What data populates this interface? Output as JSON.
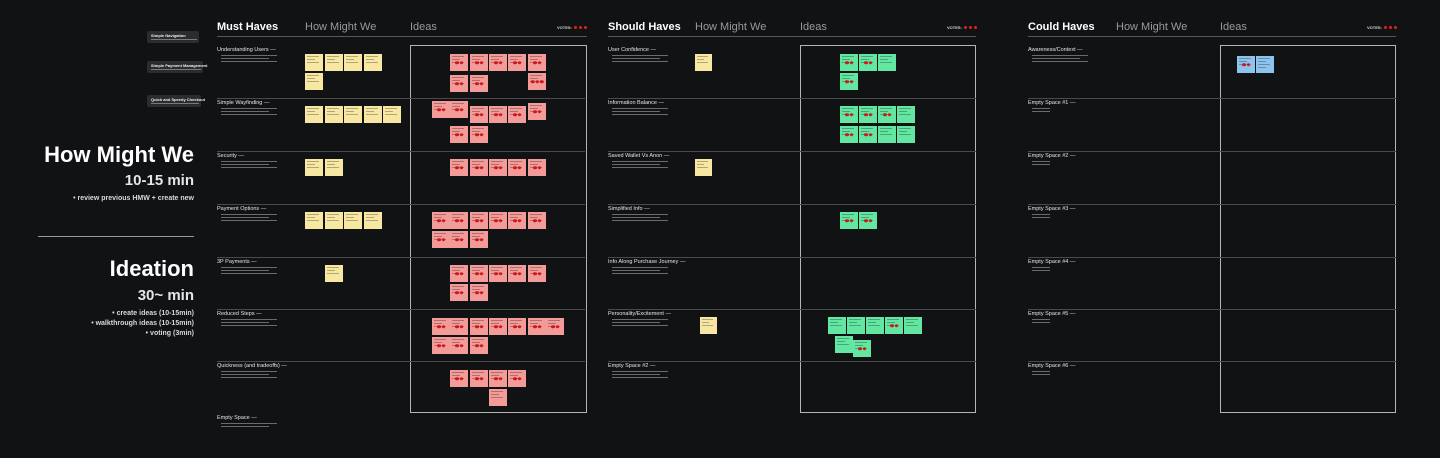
{
  "left_panel": {
    "tips": [
      {
        "title": "Simple Navigation"
      },
      {
        "title": "Simple Payment Management"
      },
      {
        "title": "Quick and Speedy Checkout"
      }
    ],
    "hmw": {
      "title": "How Might We",
      "time": "10-15 min",
      "bullets": [
        "•  review previous HMW + create new"
      ]
    },
    "ideation": {
      "title": "Ideation",
      "time": "30~ min",
      "bullets": [
        "•  create ideas (10-15min)",
        "•  walkthrough ideas (10-15min)",
        "•  voting (3min)"
      ]
    }
  },
  "sections": [
    {
      "title": "Must Haves",
      "col2": "How Might We",
      "col3": "Ideas",
      "votes_label": "VOTES:",
      "rows": [
        {
          "label": "Understanding Users —"
        },
        {
          "label": "Simple Wayfinding —"
        },
        {
          "label": "Security —"
        },
        {
          "label": "Payment Options —"
        },
        {
          "label": "3P Payments —"
        },
        {
          "label": "Reduced Steps —"
        },
        {
          "label": "Quickness (and tradeoffs) —"
        },
        {
          "label": "Empty Space —"
        }
      ]
    },
    {
      "title": "Should Haves",
      "col2": "How Might We",
      "col3": "Ideas",
      "votes_label": "VOTES:",
      "rows": [
        {
          "label": "User Confidence —"
        },
        {
          "label": "Information Balance —"
        },
        {
          "label": "Saved Wallet Vs Anon —"
        },
        {
          "label": "Simplified Info —"
        },
        {
          "label": "Info Along Purchase Journey —"
        },
        {
          "label": "Personality/Excitement —"
        },
        {
          "label": "Empty Space #2 —"
        }
      ]
    },
    {
      "title": "Could Haves",
      "col2": "How Might We",
      "col3": "Ideas",
      "votes_label": "VOTES:",
      "rows": [
        {
          "label": "Awareness/Context —"
        },
        {
          "label": "Empty Space #1 —"
        },
        {
          "label": "Empty Space #2 —"
        },
        {
          "label": "Empty Space #3 —"
        },
        {
          "label": "Empty Space #4 —"
        },
        {
          "label": "Empty Space #5 —"
        },
        {
          "label": "Empty Space #6 —"
        }
      ]
    }
  ],
  "colors": {
    "background": "#111214",
    "hmw_note": "#f7e7a2",
    "must_idea_note": "#f39b98",
    "should_idea_note": "#63e6a2",
    "could_idea_note": "#8cc4ef",
    "vote_dot": "#d01818"
  }
}
